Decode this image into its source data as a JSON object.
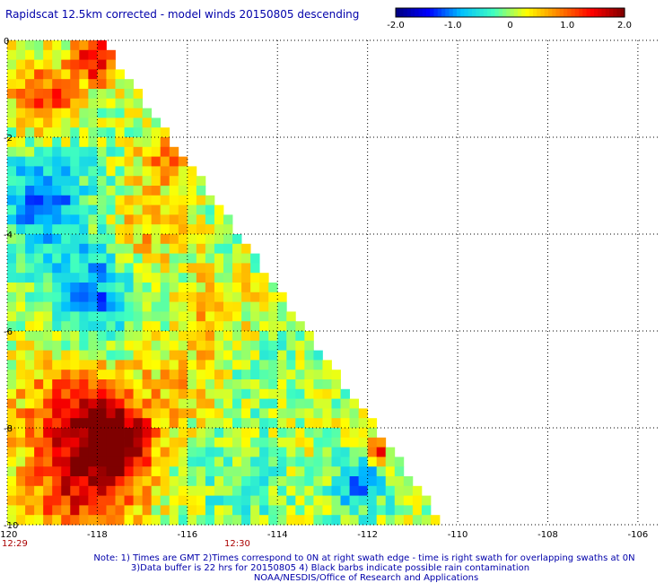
{
  "chart_data": {
    "type": "heatmap",
    "title": "Rapidscat 12.5km corrected - model winds 20150805 descending",
    "colorbar": {
      "range": [
        -2.0,
        2.0
      ],
      "ticks": [
        "-2.0",
        "-1.0",
        "0",
        "1.0",
        "2.0"
      ],
      "colors": [
        "#00007f",
        "#0000ff",
        "#00bfff",
        "#40ffbf",
        "#ffff00",
        "#ff8000",
        "#ff0000",
        "#7f0000"
      ]
    },
    "x_axis": {
      "range": [
        -120,
        -105.5
      ],
      "ticks": [
        -120,
        -118,
        -116,
        -114,
        -112,
        -110,
        -108,
        -106
      ],
      "tick_labels": [
        "-120",
        "-118",
        "-116",
        "-114",
        "-112",
        "-110",
        "-108",
        "-106"
      ]
    },
    "y_axis": {
      "range": [
        -10,
        0
      ],
      "ticks": [
        0,
        -2,
        -4,
        -6,
        -8,
        -10
      ],
      "tick_labels": [
        "0",
        "-2",
        "-4",
        "-6",
        "-8",
        "-10"
      ]
    },
    "grid": true,
    "swath_edge": [
      [
        -117.9,
        0
      ],
      [
        -110.3,
        -10
      ]
    ],
    "cell_size_deg": 0.2,
    "regions": [
      {
        "lon": -119.2,
        "lat": -1.2,
        "radius": 0.8,
        "value": 1.2
      },
      {
        "lon": -118.0,
        "lat": -0.4,
        "radius": 0.5,
        "value": 1.5
      },
      {
        "lon": -119.2,
        "lat": -3.3,
        "radius": 1.1,
        "value": -1.0
      },
      {
        "lon": -118.0,
        "lat": -5.2,
        "radius": 1.0,
        "value": -1.0
      },
      {
        "lon": -117.0,
        "lat": -4.0,
        "radius": 0.9,
        "value": 0.6
      },
      {
        "lon": -116.5,
        "lat": -2.4,
        "radius": 0.6,
        "value": 0.9
      },
      {
        "lon": -115.3,
        "lat": -5.5,
        "radius": 0.9,
        "value": 0.5
      },
      {
        "lon": -118.7,
        "lat": -7.5,
        "radius": 1.2,
        "value": 0.9
      },
      {
        "lon": -117.6,
        "lat": -8.2,
        "radius": 0.8,
        "value": 1.8
      },
      {
        "lon": -118.3,
        "lat": -9.2,
        "radius": 1.3,
        "value": 1.4
      },
      {
        "lon": -116.2,
        "lat": -7.0,
        "radius": 1.0,
        "value": 0.5
      },
      {
        "lon": -114.8,
        "lat": -9.3,
        "radius": 1.0,
        "value": -0.3
      },
      {
        "lon": -113.2,
        "lat": -8.5,
        "radius": 0.7,
        "value": 0.2
      },
      {
        "lon": -112.2,
        "lat": -9.2,
        "radius": 0.6,
        "value": -0.9
      },
      {
        "lon": -111.8,
        "lat": -8.5,
        "radius": 0.2,
        "value": 1.8
      },
      {
        "lon": -114.3,
        "lat": -6.8,
        "radius": 0.8,
        "value": -0.2
      }
    ],
    "annotations": {
      "time_left": "12:29",
      "time_mid": "12:30",
      "notes": [
        "Note: 1) Times are GMT 2)Times correspond to 0N at right swath edge - time is right swath for overlapping swaths at 0N",
        "3)Data buffer is 22 hrs for 20150805 4) Black barbs indicate possible rain contamination",
        "NOAA/NESDIS/Office of Research and Applications"
      ]
    }
  }
}
